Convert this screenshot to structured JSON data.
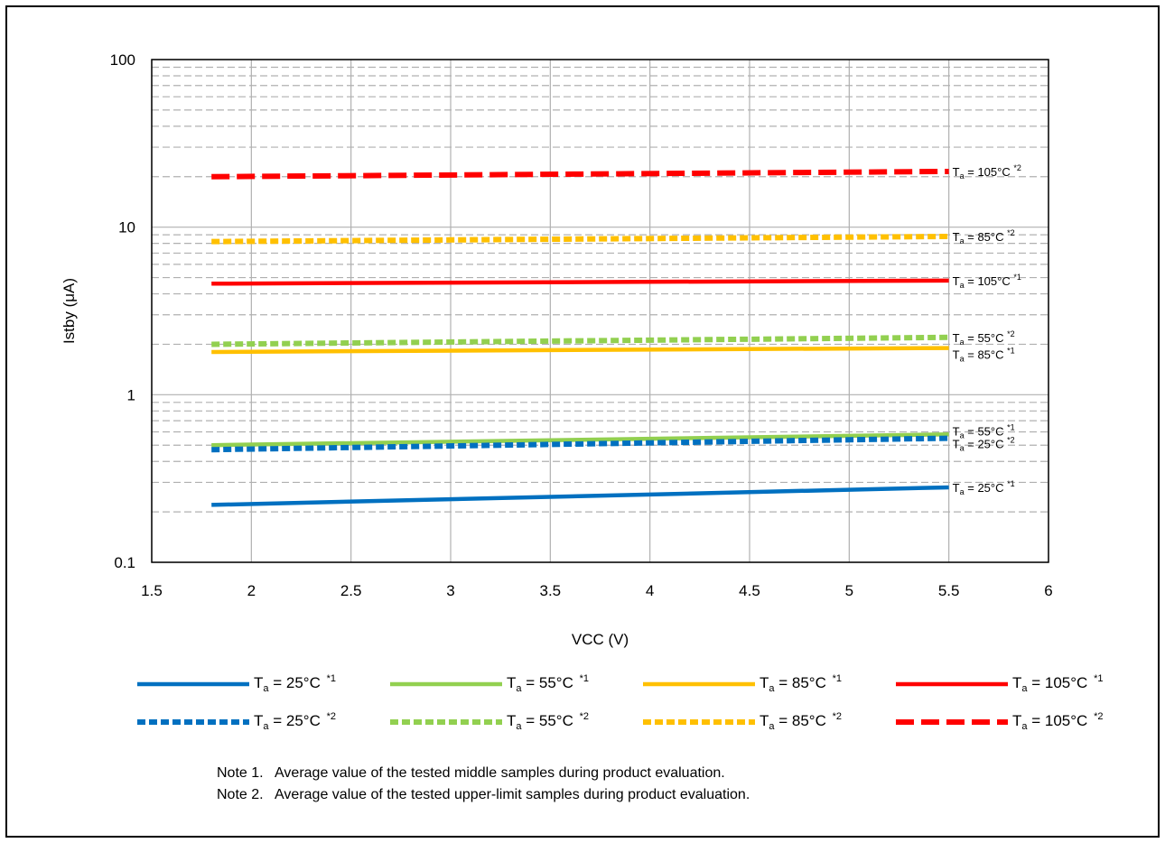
{
  "chart_data": {
    "type": "line",
    "title": "",
    "xlabel": "VCC (V)",
    "ylabel": "Istby (μA)",
    "xlim": [
      1.5,
      6
    ],
    "ylim": [
      0.1,
      100
    ],
    "yscale": "log",
    "x_ticks": [
      "1.5",
      "2",
      "2.5",
      "3",
      "3.5",
      "4",
      "4.5",
      "5",
      "5.5",
      "6"
    ],
    "y_ticks": [
      "0.1",
      "1",
      "10",
      "100"
    ],
    "grid": true,
    "legend_position": "bottom",
    "series": [
      {
        "name": "Ta = 25°C *1",
        "label_main": "T",
        "label_sub": "a",
        "label_rest": " = 25°C ",
        "note": "*1",
        "color": "#0070c0",
        "style": "solid",
        "x": [
          1.8,
          5.5
        ],
        "y": [
          0.22,
          0.28
        ]
      },
      {
        "name": "Ta = 55°C *1",
        "label_main": "T",
        "label_sub": "a",
        "label_rest": " = 55°C ",
        "note": "*1",
        "color": "#92d050",
        "style": "solid",
        "x": [
          1.8,
          5.5
        ],
        "y": [
          0.5,
          0.58
        ]
      },
      {
        "name": "Ta = 85°C *1",
        "label_main": "T",
        "label_sub": "a",
        "label_rest": " = 85°C ",
        "note": "*1",
        "color": "#ffc000",
        "style": "solid",
        "x": [
          1.8,
          5.5
        ],
        "y": [
          1.8,
          1.9
        ]
      },
      {
        "name": "Ta = 105°C *1",
        "label_main": "T",
        "label_sub": "a",
        "label_rest": " = 105°C ",
        "note": "*1",
        "color": "#ff0000",
        "style": "solid",
        "x": [
          1.8,
          5.5
        ],
        "y": [
          4.6,
          4.8
        ]
      },
      {
        "name": "Ta = 25°C *2",
        "label_main": "T",
        "label_sub": "a",
        "label_rest": " = 25°C ",
        "note": "*2",
        "color": "#0070c0",
        "style": "dotted",
        "x": [
          1.8,
          5.5
        ],
        "y": [
          0.47,
          0.55
        ]
      },
      {
        "name": "Ta = 55°C *2",
        "label_main": "T",
        "label_sub": "a",
        "label_rest": " = 55°C ",
        "note": "*2",
        "color": "#92d050",
        "style": "dotted",
        "x": [
          1.8,
          5.5
        ],
        "y": [
          2.0,
          2.2
        ]
      },
      {
        "name": "Ta = 85°C *2",
        "label_main": "T",
        "label_sub": "a",
        "label_rest": " = 85°C ",
        "note": "*2",
        "color": "#ffc000",
        "style": "dotted",
        "x": [
          1.8,
          5.5
        ],
        "y": [
          8.2,
          8.8
        ]
      },
      {
        "name": "Ta = 105°C *2",
        "label_main": "T",
        "label_sub": "a",
        "label_rest": " = 105°C ",
        "note": "*2",
        "color": "#ff0000",
        "style": "dashed",
        "x": [
          1.8,
          5.5
        ],
        "y": [
          20,
          21.5
        ]
      }
    ]
  },
  "notes": [
    "Note 1.   Average value of the tested middle samples during product evaluation.",
    "Note 2.   Average value of the tested upper-limit samples during product evaluation."
  ]
}
